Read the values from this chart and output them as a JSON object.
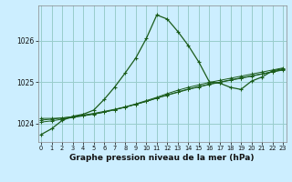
{
  "title": "Graphe pression niveau de la mer (hPa)",
  "bg_color": "#cceeff",
  "grid_color": "#99cccc",
  "line_color": "#1a5c1a",
  "spine_color": "#888888",
  "x_ticks": [
    0,
    1,
    2,
    3,
    4,
    5,
    6,
    7,
    8,
    9,
    10,
    11,
    12,
    13,
    14,
    15,
    16,
    17,
    18,
    19,
    20,
    21,
    22,
    23
  ],
  "y_ticks": [
    1024,
    1025,
    1026
  ],
  "ylim": [
    1023.55,
    1026.85
  ],
  "xlim": [
    -0.3,
    23.3
  ],
  "series": [
    [
      1023.73,
      1023.87,
      1024.07,
      1024.17,
      1024.22,
      1024.32,
      1024.58,
      1024.88,
      1025.22,
      1025.58,
      1026.05,
      1026.62,
      1026.52,
      1026.22,
      1025.88,
      1025.48,
      1025.0,
      1024.97,
      1024.87,
      1024.82,
      1025.02,
      1025.12,
      1025.27,
      1025.32
    ],
    [
      1024.12,
      1024.12,
      1024.13,
      1024.16,
      1024.2,
      1024.24,
      1024.29,
      1024.34,
      1024.4,
      1024.47,
      1024.55,
      1024.63,
      1024.72,
      1024.8,
      1024.87,
      1024.93,
      1024.99,
      1025.04,
      1025.09,
      1025.14,
      1025.19,
      1025.24,
      1025.29,
      1025.34
    ],
    [
      1024.08,
      1024.1,
      1024.13,
      1024.16,
      1024.19,
      1024.23,
      1024.27,
      1024.33,
      1024.39,
      1024.46,
      1024.53,
      1024.61,
      1024.69,
      1024.76,
      1024.83,
      1024.89,
      1024.95,
      1025.0,
      1025.05,
      1025.1,
      1025.15,
      1025.2,
      1025.25,
      1025.3
    ],
    [
      1024.03,
      1024.06,
      1024.1,
      1024.14,
      1024.18,
      1024.22,
      1024.27,
      1024.33,
      1024.39,
      1024.46,
      1024.53,
      1024.61,
      1024.68,
      1024.75,
      1024.82,
      1024.88,
      1024.94,
      1024.99,
      1025.04,
      1025.09,
      1025.14,
      1025.19,
      1025.24,
      1025.29
    ]
  ]
}
